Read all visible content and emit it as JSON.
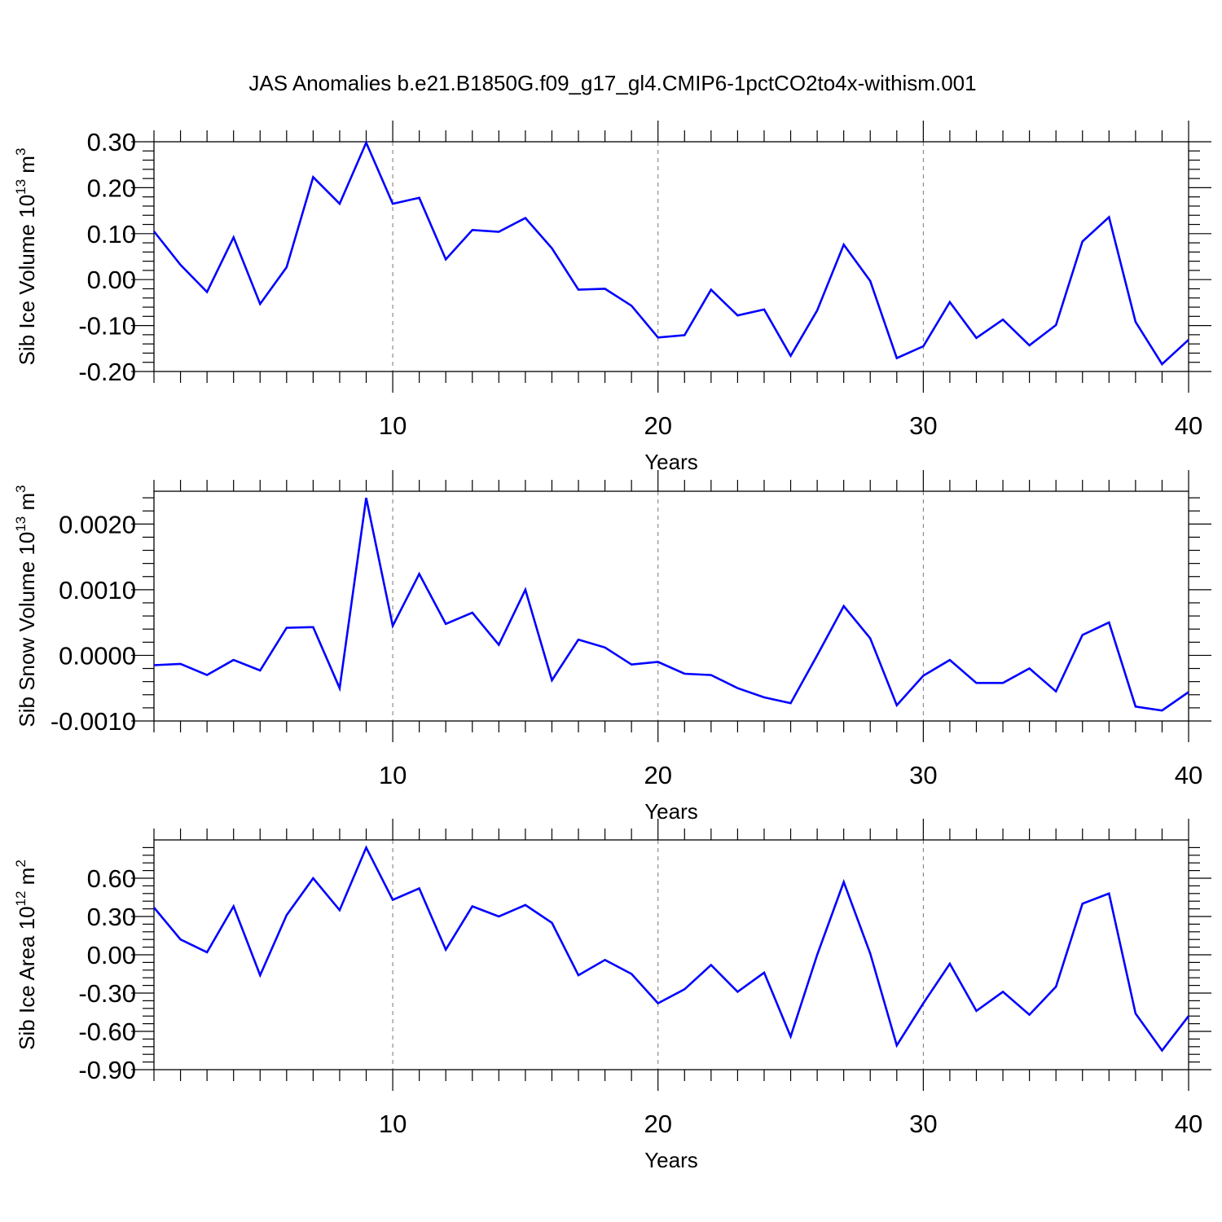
{
  "title": "JAS Anomalies b.e21.B1850G.f09_g17_gl4.CMIP6-1pctCO2to4x-withism.001",
  "chart_data": [
    {
      "type": "line",
      "title": "",
      "xlabel": "Years",
      "ylabel": "Sib Ice Volume 10",
      "ylabel_exp": "13",
      "ylabel_unit": " m",
      "ylabel_unit_exp": "3",
      "xlim": [
        1,
        40
      ],
      "ylim": [
        -0.2,
        0.3
      ],
      "xticks": [
        10,
        20,
        30,
        40
      ],
      "xtick_labels": [
        "10",
        "20",
        "30",
        "40"
      ],
      "yticks": [
        -0.2,
        -0.1,
        0.0,
        0.1,
        0.2,
        0.3
      ],
      "ytick_labels": [
        "-0.20",
        "-0.10",
        "0.00",
        "0.10",
        "0.20",
        "0.30"
      ],
      "grid_x": true,
      "series": [
        {
          "color": "#0000ff",
          "x": [
            1,
            2,
            3,
            4,
            5,
            6,
            7,
            8,
            9,
            10,
            11,
            12,
            13,
            14,
            15,
            16,
            17,
            18,
            19,
            20,
            21,
            22,
            23,
            24,
            25,
            26,
            27,
            28,
            29,
            30,
            31,
            32,
            33,
            34,
            35,
            36,
            37,
            38,
            39,
            40
          ],
          "y": [
            0.105,
            0.032,
            -0.027,
            0.092,
            -0.053,
            0.027,
            0.223,
            0.165,
            0.298,
            0.165,
            0.178,
            0.044,
            0.108,
            0.104,
            0.134,
            0.068,
            -0.022,
            -0.02,
            -0.057,
            -0.126,
            -0.121,
            -0.022,
            -0.078,
            -0.065,
            -0.166,
            -0.067,
            0.076,
            -0.003,
            -0.171,
            -0.145,
            -0.049,
            -0.127,
            -0.087,
            -0.143,
            -0.099,
            0.083,
            0.136,
            -0.092,
            -0.184,
            -0.131
          ]
        }
      ]
    },
    {
      "type": "line",
      "title": "",
      "xlabel": "Years",
      "ylabel": "Sib Snow Volume 10",
      "ylabel_exp": "13",
      "ylabel_unit": " m",
      "ylabel_unit_exp": "3",
      "xlim": [
        1,
        40
      ],
      "ylim": [
        -0.001,
        0.0025
      ],
      "xticks": [
        10,
        20,
        30,
        40
      ],
      "xtick_labels": [
        "10",
        "20",
        "30",
        "40"
      ],
      "yticks": [
        -0.001,
        0.0,
        0.001,
        0.002
      ],
      "ytick_labels": [
        "-0.0010",
        "0.0000",
        "0.0010",
        "0.0020"
      ],
      "grid_x": true,
      "series": [
        {
          "color": "#0000ff",
          "x": [
            1,
            2,
            3,
            4,
            5,
            6,
            7,
            8,
            9,
            10,
            11,
            12,
            13,
            14,
            15,
            16,
            17,
            18,
            19,
            20,
            21,
            22,
            23,
            24,
            25,
            26,
            27,
            28,
            29,
            30,
            31,
            32,
            33,
            34,
            35,
            36,
            37,
            38,
            39,
            40
          ],
          "y": [
            -0.00015,
            -0.00013,
            -0.0003,
            -7e-05,
            -0.00023,
            0.00042,
            0.00043,
            -0.0005,
            0.0024,
            0.00045,
            0.00124,
            0.00048,
            0.00065,
            0.00016,
            0.001,
            -0.00038,
            0.00024,
            0.00012,
            -0.00014,
            -0.0001,
            -0.00028,
            -0.0003,
            -0.0005,
            -0.00064,
            -0.00073,
            0.0,
            0.00075,
            0.00026,
            -0.00076,
            -0.00031,
            -7e-05,
            -0.00042,
            -0.00042,
            -0.0002,
            -0.00055,
            0.00031,
            0.0005,
            -0.00078,
            -0.00084,
            -0.00056
          ]
        }
      ]
    },
    {
      "type": "line",
      "title": "",
      "xlabel": "Years",
      "ylabel": "Sib Ice Area 10",
      "ylabel_exp": "12",
      "ylabel_unit": " m",
      "ylabel_unit_exp": "2",
      "xlim": [
        1,
        40
      ],
      "ylim": [
        -0.9,
        0.9
      ],
      "xticks": [
        10,
        20,
        30,
        40
      ],
      "xtick_labels": [
        "10",
        "20",
        "30",
        "40"
      ],
      "yticks": [
        -0.9,
        -0.6,
        -0.3,
        0.0,
        0.3,
        0.6
      ],
      "ytick_labels": [
        "-0.90",
        "-0.60",
        "-0.30",
        "0.00",
        "0.30",
        "0.60"
      ],
      "grid_x": true,
      "series": [
        {
          "color": "#0000ff",
          "x": [
            1,
            2,
            3,
            4,
            5,
            6,
            7,
            8,
            9,
            10,
            11,
            12,
            13,
            14,
            15,
            16,
            17,
            18,
            19,
            20,
            21,
            22,
            23,
            24,
            25,
            26,
            27,
            28,
            29,
            30,
            31,
            32,
            33,
            34,
            35,
            36,
            37,
            38,
            39,
            40
          ],
          "y": [
            0.37,
            0.12,
            0.02,
            0.38,
            -0.16,
            0.31,
            0.6,
            0.35,
            0.84,
            0.43,
            0.52,
            0.04,
            0.38,
            0.3,
            0.39,
            0.25,
            -0.16,
            -0.04,
            -0.15,
            -0.38,
            -0.27,
            -0.08,
            -0.29,
            -0.14,
            -0.64,
            0.0,
            0.57,
            0.01,
            -0.71,
            -0.38,
            -0.07,
            -0.44,
            -0.29,
            -0.47,
            -0.25,
            0.4,
            0.48,
            -0.46,
            -0.75,
            -0.48
          ]
        }
      ]
    }
  ]
}
